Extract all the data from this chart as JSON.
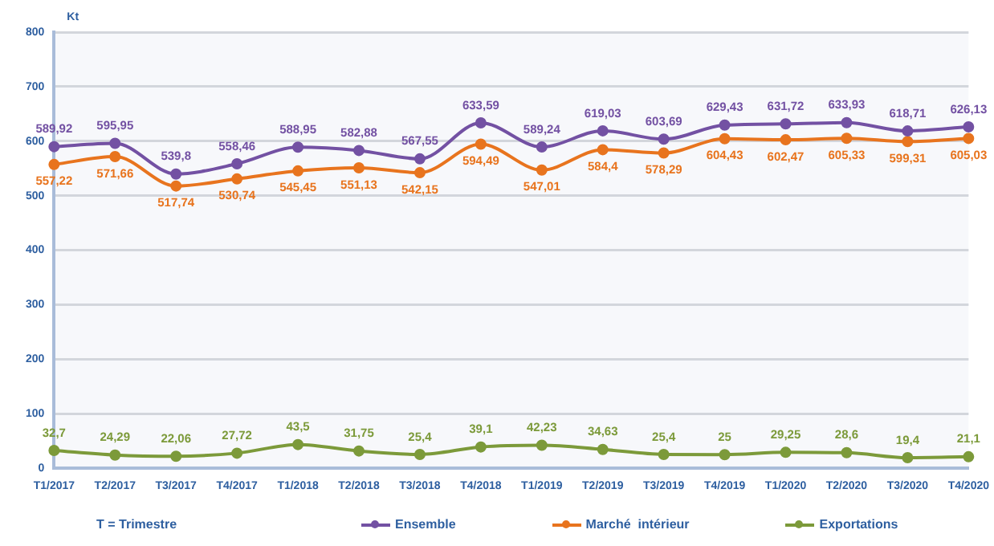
{
  "chart_data": {
    "type": "line",
    "ylabel": "Kt",
    "annotations": [
      "T = Trimestre"
    ],
    "categories": [
      "T1/2017",
      "T2/2017",
      "T3/2017",
      "T4/2017",
      "T1/2018",
      "T2/2018",
      "T3/2018",
      "T4/2018",
      "T1/2019",
      "T2/2019",
      "T3/2019",
      "T4/2019",
      "T1/2020",
      "T2/2020",
      "T3/2020",
      "T4/2020"
    ],
    "series": [
      {
        "name": "Ensemble",
        "color": "#7351a3",
        "values": [
          589.92,
          595.95,
          539.8,
          558.46,
          588.95,
          582.88,
          567.55,
          633.59,
          589.24,
          619.03,
          603.69,
          629.43,
          631.72,
          633.93,
          618.71,
          626.13
        ],
        "value_labels": [
          "589,92",
          "595,95",
          "539,8",
          "558,46",
          "588,95",
          "582,88",
          "567,55",
          "633,59",
          "589,24",
          "619,03",
          "603,69",
          "629,43",
          "631,72",
          "633,93",
          "618,71",
          "626,13"
        ]
      },
      {
        "name": "Marché  intérieur",
        "color": "#e8741e",
        "values": [
          557.22,
          571.66,
          517.74,
          530.74,
          545.45,
          551.13,
          542.15,
          594.49,
          547.01,
          584.4,
          578.29,
          604.43,
          602.47,
          605.33,
          599.31,
          605.03
        ],
        "value_labels": [
          "557,22",
          "571,66",
          "517,74",
          "530,74",
          "545,45",
          "551,13",
          "542,15",
          "594,49",
          "547,01",
          "584,4",
          "578,29",
          "604,43",
          "602,47",
          "605,33",
          "599,31",
          "605,03"
        ]
      },
      {
        "name": "Exportations",
        "color": "#7c9a3a",
        "values": [
          32.7,
          24.29,
          22.06,
          27.72,
          43.5,
          31.75,
          25.4,
          39.1,
          42.23,
          34.63,
          25.4,
          25,
          29.25,
          28.6,
          19.4,
          21.1
        ],
        "value_labels": [
          "32,7",
          "24,29",
          "22,06",
          "27,72",
          "43,5",
          "31,75",
          "25,4",
          "39,1",
          "42,23",
          "34,63",
          "25,4",
          "25",
          "29,25",
          "28,6",
          "19,4",
          "21,1"
        ]
      }
    ],
    "ylim": [
      0,
      800
    ],
    "yticks": [
      0,
      100,
      200,
      300,
      400,
      500,
      600,
      700,
      800
    ],
    "grid": "y",
    "legend": "bottom",
    "marker": "circle",
    "line_style": "solid"
  }
}
